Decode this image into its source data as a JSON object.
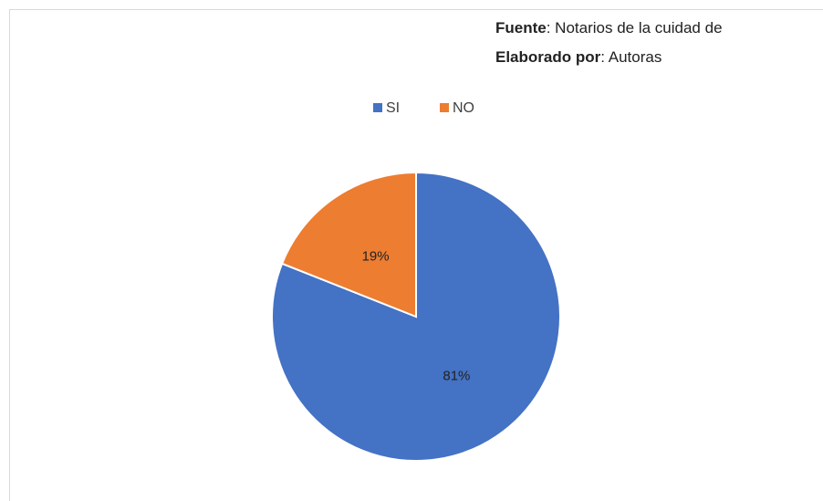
{
  "chart_data": {
    "type": "pie",
    "annotations": [
      {
        "label": "Fuente",
        "text": ": Notarios de la cuidad de"
      },
      {
        "label": "Elaborado por",
        "text": ": Autoras"
      }
    ],
    "categories": [
      "SI",
      "NO"
    ],
    "values": [
      81,
      19
    ],
    "value_labels": [
      "81%",
      "19%"
    ],
    "colors": [
      "#4472c4",
      "#ed7d31"
    ],
    "legend": "top"
  }
}
